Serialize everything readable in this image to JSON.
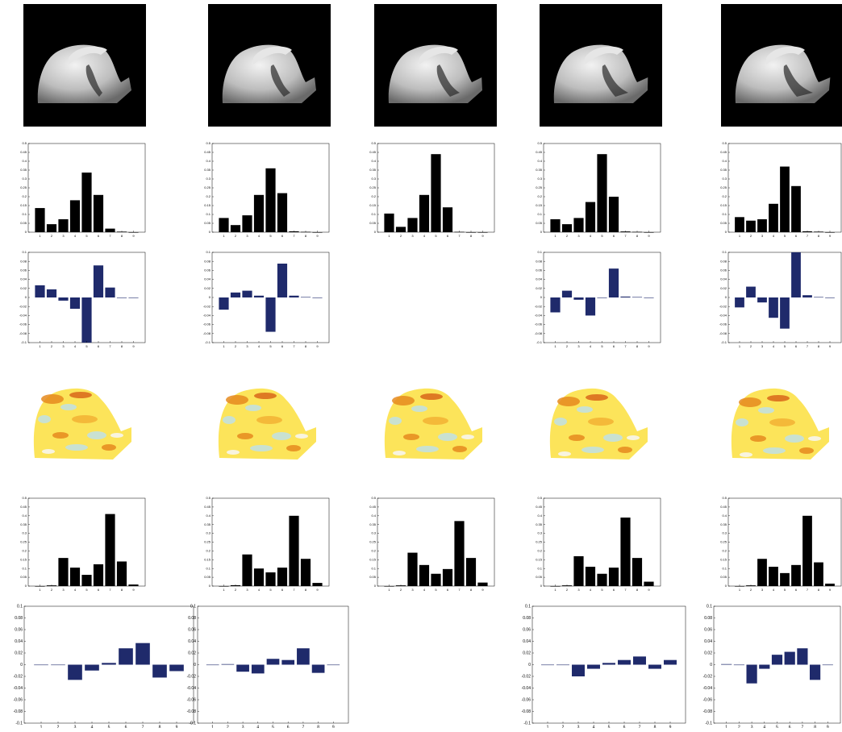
{
  "chart_data": [
    {
      "type": "bar",
      "color": "#000000",
      "categories": [
        "1",
        "2",
        "3",
        "4",
        "5",
        "6",
        "7",
        "8",
        "9"
      ],
      "values": [
        0.136,
        0.045,
        0.073,
        0.18,
        0.336,
        0.21,
        0.02,
        0.003,
        0
      ],
      "ylim": [
        0,
        0.5
      ],
      "yticks": [
        0,
        0.05,
        0.1,
        0.15,
        0.2,
        0.25,
        0.3,
        0.35,
        0.4,
        0.45,
        0.5
      ]
    },
    {
      "type": "bar",
      "color": "#000000",
      "categories": [
        "1",
        "2",
        "3",
        "4",
        "5",
        "6",
        "7",
        "8",
        "9"
      ],
      "values": [
        0.08,
        0.04,
        0.095,
        0.21,
        0.36,
        0.22,
        0.005,
        0.002,
        0
      ],
      "ylim": [
        0,
        0.5
      ],
      "yticks": [
        0,
        0.05,
        0.1,
        0.15,
        0.2,
        0.25,
        0.3,
        0.35,
        0.4,
        0.45,
        0.5
      ]
    },
    {
      "type": "bar",
      "color": "#000000",
      "categories": [
        "1",
        "2",
        "3",
        "4",
        "5",
        "6",
        "7",
        "8",
        "9"
      ],
      "values": [
        0.105,
        0.03,
        0.08,
        0.21,
        0.44,
        0.14,
        0.002,
        0,
        0
      ],
      "ylim": [
        0,
        0.5
      ],
      "yticks": [
        0,
        0.05,
        0.1,
        0.15,
        0.2,
        0.25,
        0.3,
        0.35,
        0.4,
        0.45,
        0.5
      ]
    },
    {
      "type": "bar",
      "color": "#000000",
      "categories": [
        "1",
        "2",
        "3",
        "4",
        "5",
        "6",
        "7",
        "8",
        "9"
      ],
      "values": [
        0.073,
        0.045,
        0.08,
        0.17,
        0.44,
        0.2,
        0.004,
        0.002,
        0
      ],
      "ylim": [
        0,
        0.5
      ],
      "yticks": [
        0,
        0.05,
        0.1,
        0.15,
        0.2,
        0.25,
        0.3,
        0.35,
        0.4,
        0.45,
        0.5
      ]
    },
    {
      "type": "bar",
      "color": "#000000",
      "categories": [
        "1",
        "2",
        "3",
        "4",
        "5",
        "6",
        "7",
        "8",
        "9"
      ],
      "values": [
        0.085,
        0.065,
        0.073,
        0.16,
        0.37,
        0.26,
        0.005,
        0.003,
        0
      ],
      "ylim": [
        0,
        0.5
      ],
      "yticks": [
        0,
        0.05,
        0.1,
        0.15,
        0.2,
        0.25,
        0.3,
        0.35,
        0.4,
        0.45,
        0.5
      ]
    },
    {
      "type": "bar",
      "color": "#1f2a6b",
      "categories": [
        "1",
        "2",
        "3",
        "4",
        "5",
        "6",
        "7",
        "8",
        "9"
      ],
      "values": [
        0.027,
        0.018,
        -0.007,
        -0.025,
        -0.1,
        0.071,
        0.022,
        0,
        0
      ],
      "ylim": [
        -0.1,
        0.1
      ],
      "yticks": [
        -0.1,
        -0.08,
        -0.06,
        -0.04,
        -0.02,
        0,
        0.02,
        0.04,
        0.06,
        0.08,
        0.1
      ]
    },
    {
      "type": "bar",
      "color": "#1f2a6b",
      "categories": [
        "1",
        "2",
        "3",
        "4",
        "5",
        "6",
        "7",
        "8",
        "9"
      ],
      "values": [
        -0.027,
        0.011,
        0.015,
        0.004,
        -0.076,
        0.075,
        0.004,
        0.001,
        0
      ],
      "ylim": [
        -0.1,
        0.1
      ],
      "yticks": [
        -0.1,
        -0.08,
        -0.06,
        -0.04,
        -0.02,
        0,
        0.02,
        0.04,
        0.06,
        0.08,
        0.1
      ]
    },
    {
      "type": "bar",
      "color": "#1f2a6b",
      "categories": [
        "1",
        "2",
        "3",
        "4",
        "5",
        "6",
        "7",
        "8",
        "9"
      ],
      "values": [
        -0.033,
        0.015,
        -0.005,
        -0.04,
        0,
        0.064,
        0.002,
        0.001,
        0
      ],
      "ylim": [
        -0.1,
        0.1
      ],
      "yticks": [
        -0.1,
        -0.08,
        -0.06,
        -0.04,
        -0.02,
        0,
        0.02,
        0.04,
        0.06,
        0.08,
        0.1
      ]
    },
    {
      "type": "bar",
      "color": "#1f2a6b",
      "categories": [
        "1",
        "2",
        "3",
        "4",
        "5",
        "6",
        "7",
        "8",
        "9"
      ],
      "values": [
        -0.022,
        0.024,
        -0.011,
        -0.045,
        -0.069,
        0.1,
        0.005,
        0.001,
        0
      ],
      "ylim": [
        -0.1,
        0.1
      ],
      "yticks": [
        -0.1,
        -0.08,
        -0.06,
        -0.04,
        -0.02,
        0,
        0.02,
        0.04,
        0.06,
        0.08,
        0.1
      ]
    },
    {
      "type": "bar",
      "color": "#000000",
      "categories": [
        "1",
        "2",
        "3",
        "4",
        "5",
        "6",
        "7",
        "8",
        "9"
      ],
      "values": [
        0,
        0.004,
        0.16,
        0.105,
        0.064,
        0.124,
        0.41,
        0.14,
        0.009
      ],
      "ylim": [
        0,
        0.5
      ],
      "yticks": [
        0,
        0.05,
        0.1,
        0.15,
        0.2,
        0.25,
        0.3,
        0.35,
        0.4,
        0.45,
        0.5
      ]
    },
    {
      "type": "bar",
      "color": "#000000",
      "categories": [
        "1",
        "2",
        "3",
        "4",
        "5",
        "6",
        "7",
        "8",
        "9"
      ],
      "values": [
        0,
        0.005,
        0.18,
        0.1,
        0.078,
        0.105,
        0.4,
        0.155,
        0.018
      ],
      "ylim": [
        0,
        0.5
      ],
      "yticks": [
        0,
        0.05,
        0.1,
        0.15,
        0.2,
        0.25,
        0.3,
        0.35,
        0.4,
        0.45,
        0.5
      ]
    },
    {
      "type": "bar",
      "color": "#000000",
      "categories": [
        "1",
        "2",
        "3",
        "4",
        "5",
        "6",
        "7",
        "8",
        "9"
      ],
      "values": [
        0,
        0.004,
        0.19,
        0.12,
        0.07,
        0.097,
        0.37,
        0.16,
        0.02
      ],
      "ylim": [
        0,
        0.5
      ],
      "yticks": [
        0,
        0.05,
        0.1,
        0.15,
        0.2,
        0.25,
        0.3,
        0.35,
        0.4,
        0.45,
        0.5
      ]
    },
    {
      "type": "bar",
      "color": "#000000",
      "categories": [
        "1",
        "2",
        "3",
        "4",
        "5",
        "6",
        "7",
        "8",
        "9"
      ],
      "values": [
        0,
        0.004,
        0.17,
        0.11,
        0.07,
        0.105,
        0.39,
        0.16,
        0.025
      ],
      "ylim": [
        0,
        0.5
      ],
      "yticks": [
        0,
        0.05,
        0.1,
        0.15,
        0.2,
        0.25,
        0.3,
        0.35,
        0.4,
        0.45,
        0.5
      ]
    },
    {
      "type": "bar",
      "color": "#000000",
      "categories": [
        "1",
        "2",
        "3",
        "4",
        "5",
        "6",
        "7",
        "8",
        "9"
      ],
      "values": [
        0,
        0.004,
        0.155,
        0.11,
        0.074,
        0.12,
        0.4,
        0.135,
        0.014
      ],
      "ylim": [
        0,
        0.5
      ],
      "yticks": [
        0,
        0.05,
        0.1,
        0.15,
        0.2,
        0.25,
        0.3,
        0.35,
        0.4,
        0.45,
        0.5
      ]
    },
    {
      "type": "bar",
      "color": "#1f2a6b",
      "categories": [
        "1",
        "2",
        "3",
        "4",
        "5",
        "6",
        "7",
        "8",
        "9"
      ],
      "values": [
        0,
        0,
        -0.026,
        -0.01,
        0.003,
        0.028,
        0.037,
        -0.022,
        -0.011
      ],
      "ylim": [
        -0.1,
        0.1
      ],
      "yticks": [
        -0.1,
        -0.08,
        -0.06,
        -0.04,
        -0.02,
        0,
        0.02,
        0.04,
        0.06,
        0.08,
        0.1
      ]
    },
    {
      "type": "bar",
      "color": "#1f2a6b",
      "categories": [
        "1",
        "2",
        "3",
        "4",
        "5",
        "6",
        "7",
        "8",
        "9"
      ],
      "values": [
        0,
        0.001,
        -0.012,
        -0.015,
        0.01,
        0.008,
        0.028,
        -0.014,
        0
      ],
      "ylim": [
        -0.1,
        0.1
      ],
      "yticks": [
        -0.1,
        -0.08,
        -0.06,
        -0.04,
        -0.02,
        0,
        0.02,
        0.04,
        0.06,
        0.08,
        0.1
      ]
    },
    {
      "type": "bar",
      "color": "#1f2a6b",
      "categories": [
        "1",
        "2",
        "3",
        "4",
        "5",
        "6",
        "7",
        "8",
        "9"
      ],
      "values": [
        0,
        0,
        -0.02,
        -0.007,
        0.003,
        0.008,
        0.014,
        -0.007,
        0.008
      ],
      "ylim": [
        -0.1,
        0.1
      ],
      "yticks": [
        -0.1,
        -0.08,
        -0.06,
        -0.04,
        -0.02,
        0,
        0.02,
        0.04,
        0.06,
        0.08,
        0.1
      ]
    },
    {
      "type": "bar",
      "color": "#1f2a6b",
      "categories": [
        "1",
        "2",
        "3",
        "4",
        "5",
        "6",
        "7",
        "8",
        "9"
      ],
      "values": [
        0.001,
        0,
        -0.032,
        -0.007,
        0.017,
        0.022,
        0.028,
        -0.026,
        0
      ],
      "ylim": [
        -0.1,
        0.1
      ],
      "yticks": [
        -0.1,
        -0.08,
        -0.06,
        -0.04,
        -0.02,
        0,
        0.02,
        0.04,
        0.06,
        0.08,
        0.1
      ]
    }
  ]
}
